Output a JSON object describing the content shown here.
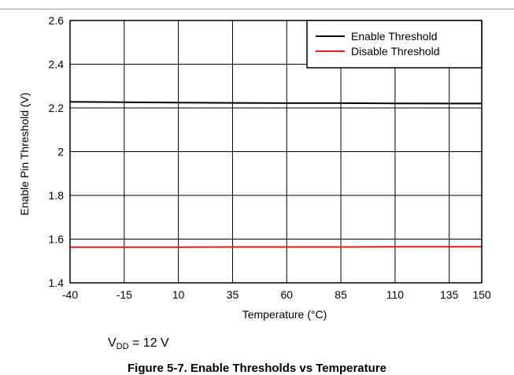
{
  "chart_data": {
    "type": "line",
    "title": "",
    "xlabel": "Temperature (°C)",
    "ylabel": "Enable Pin Threshold (V)",
    "xlim": [
      -40,
      150
    ],
    "ylim": [
      1.4,
      2.6
    ],
    "x_ticks": [
      -40,
      -15,
      10,
      35,
      60,
      85,
      110,
      135,
      150
    ],
    "x_tick_labels": [
      "-40",
      "-15",
      "10",
      "35",
      "60",
      "85",
      "110",
      "135",
      "150"
    ],
    "y_ticks": [
      1.4,
      1.6,
      1.8,
      2.0,
      2.2,
      2.4,
      2.6
    ],
    "y_tick_labels": [
      "1.4",
      "1.6",
      "1.8",
      "2",
      "2.2",
      "2.4",
      "2.6"
    ],
    "grid": true,
    "legend_position": "top-right",
    "series": [
      {
        "name": "Enable Threshold",
        "color": "#000000",
        "x": [
          -40,
          -15,
          10,
          35,
          60,
          85,
          110,
          135,
          150
        ],
        "y": [
          2.228,
          2.226,
          2.224,
          2.223,
          2.222,
          2.222,
          2.221,
          2.22,
          2.22
        ]
      },
      {
        "name": "Disable Threshold",
        "color": "#e41a1c",
        "x": [
          -40,
          -15,
          10,
          35,
          60,
          85,
          110,
          135,
          150
        ],
        "y": [
          1.563,
          1.563,
          1.563,
          1.564,
          1.564,
          1.564,
          1.565,
          1.565,
          1.565
        ]
      }
    ]
  },
  "conditions": {
    "v_symbol": "V",
    "v_subscript": "DD",
    "v_rest": " = 12 V"
  },
  "caption": "Figure 5-7. Enable Thresholds vs Temperature"
}
